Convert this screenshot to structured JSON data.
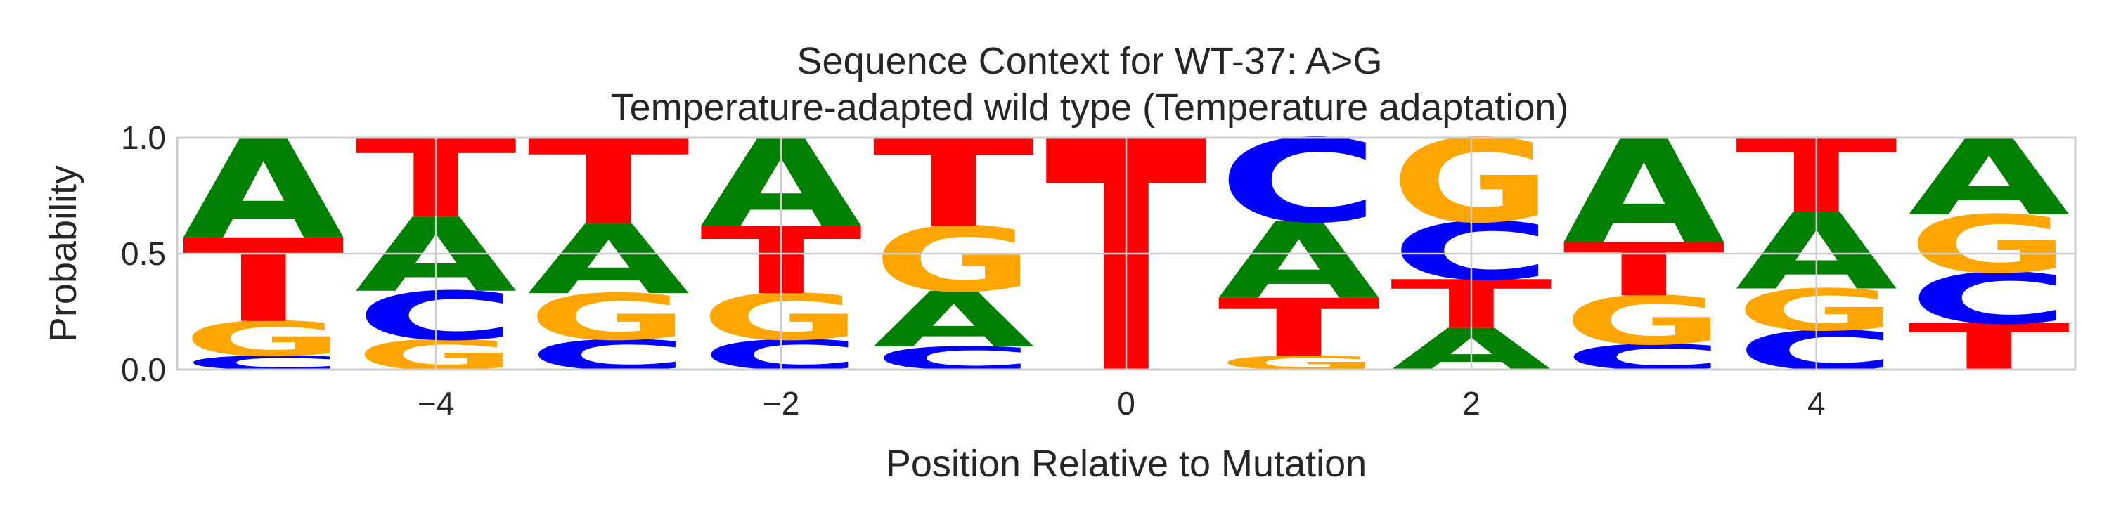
{
  "chart_data": {
    "type": "sequence-logo",
    "title": "Sequence Context for WT-37: A>G",
    "subtitle": "Temperature-adapted wild type (Temperature adaptation)",
    "xlabel": "Position Relative to Mutation",
    "ylabel": "Probability",
    "xlim": [
      -5.5,
      5.5
    ],
    "ylim": [
      0,
      1
    ],
    "xticks": [
      -4,
      -2,
      0,
      2,
      4
    ],
    "xtick_labels": [
      "−4",
      "−2",
      "0",
      "2",
      "4"
    ],
    "yticks": [
      0,
      0.5,
      1
    ],
    "ytick_labels": [
      "0.0",
      "0.5",
      "1.0"
    ],
    "grid": true,
    "colors": {
      "A": "#008000",
      "C": "#0000ff",
      "G": "#ffa500",
      "T": "#ff0000"
    },
    "positions": [
      {
        "x": -5,
        "stack": [
          [
            "C",
            0.06
          ],
          [
            "G",
            0.15
          ],
          [
            "T",
            0.36
          ],
          [
            "A",
            0.43
          ]
        ]
      },
      {
        "x": -4,
        "stack": [
          [
            "G",
            0.13
          ],
          [
            "C",
            0.21
          ],
          [
            "A",
            0.32
          ],
          [
            "T",
            0.34
          ]
        ]
      },
      {
        "x": -3,
        "stack": [
          [
            "C",
            0.13
          ],
          [
            "G",
            0.2
          ],
          [
            "A",
            0.3
          ],
          [
            "T",
            0.37
          ]
        ]
      },
      {
        "x": -2,
        "stack": [
          [
            "C",
            0.13
          ],
          [
            "G",
            0.2
          ],
          [
            "T",
            0.29
          ],
          [
            "A",
            0.38
          ]
        ]
      },
      {
        "x": -1,
        "stack": [
          [
            "C",
            0.1
          ],
          [
            "A",
            0.24
          ],
          [
            "G",
            0.28
          ],
          [
            "T",
            0.38
          ]
        ]
      },
      {
        "x": 0,
        "stack": [
          [
            "T",
            1.0
          ]
        ]
      },
      {
        "x": 1,
        "stack": [
          [
            "G",
            0.06
          ],
          [
            "T",
            0.25
          ],
          [
            "A",
            0.33
          ],
          [
            "C",
            0.36
          ]
        ]
      },
      {
        "x": 2,
        "stack": [
          [
            "A",
            0.18
          ],
          [
            "T",
            0.21
          ],
          [
            "C",
            0.25
          ],
          [
            "G",
            0.36
          ]
        ]
      },
      {
        "x": 3,
        "stack": [
          [
            "C",
            0.11
          ],
          [
            "G",
            0.21
          ],
          [
            "T",
            0.23
          ],
          [
            "A",
            0.45
          ]
        ]
      },
      {
        "x": 4,
        "stack": [
          [
            "C",
            0.17
          ],
          [
            "G",
            0.18
          ],
          [
            "A",
            0.33
          ],
          [
            "T",
            0.32
          ]
        ]
      },
      {
        "x": 5,
        "stack": [
          [
            "T",
            0.2
          ],
          [
            "C",
            0.22
          ],
          [
            "G",
            0.25
          ],
          [
            "A",
            0.33
          ]
        ]
      }
    ]
  }
}
